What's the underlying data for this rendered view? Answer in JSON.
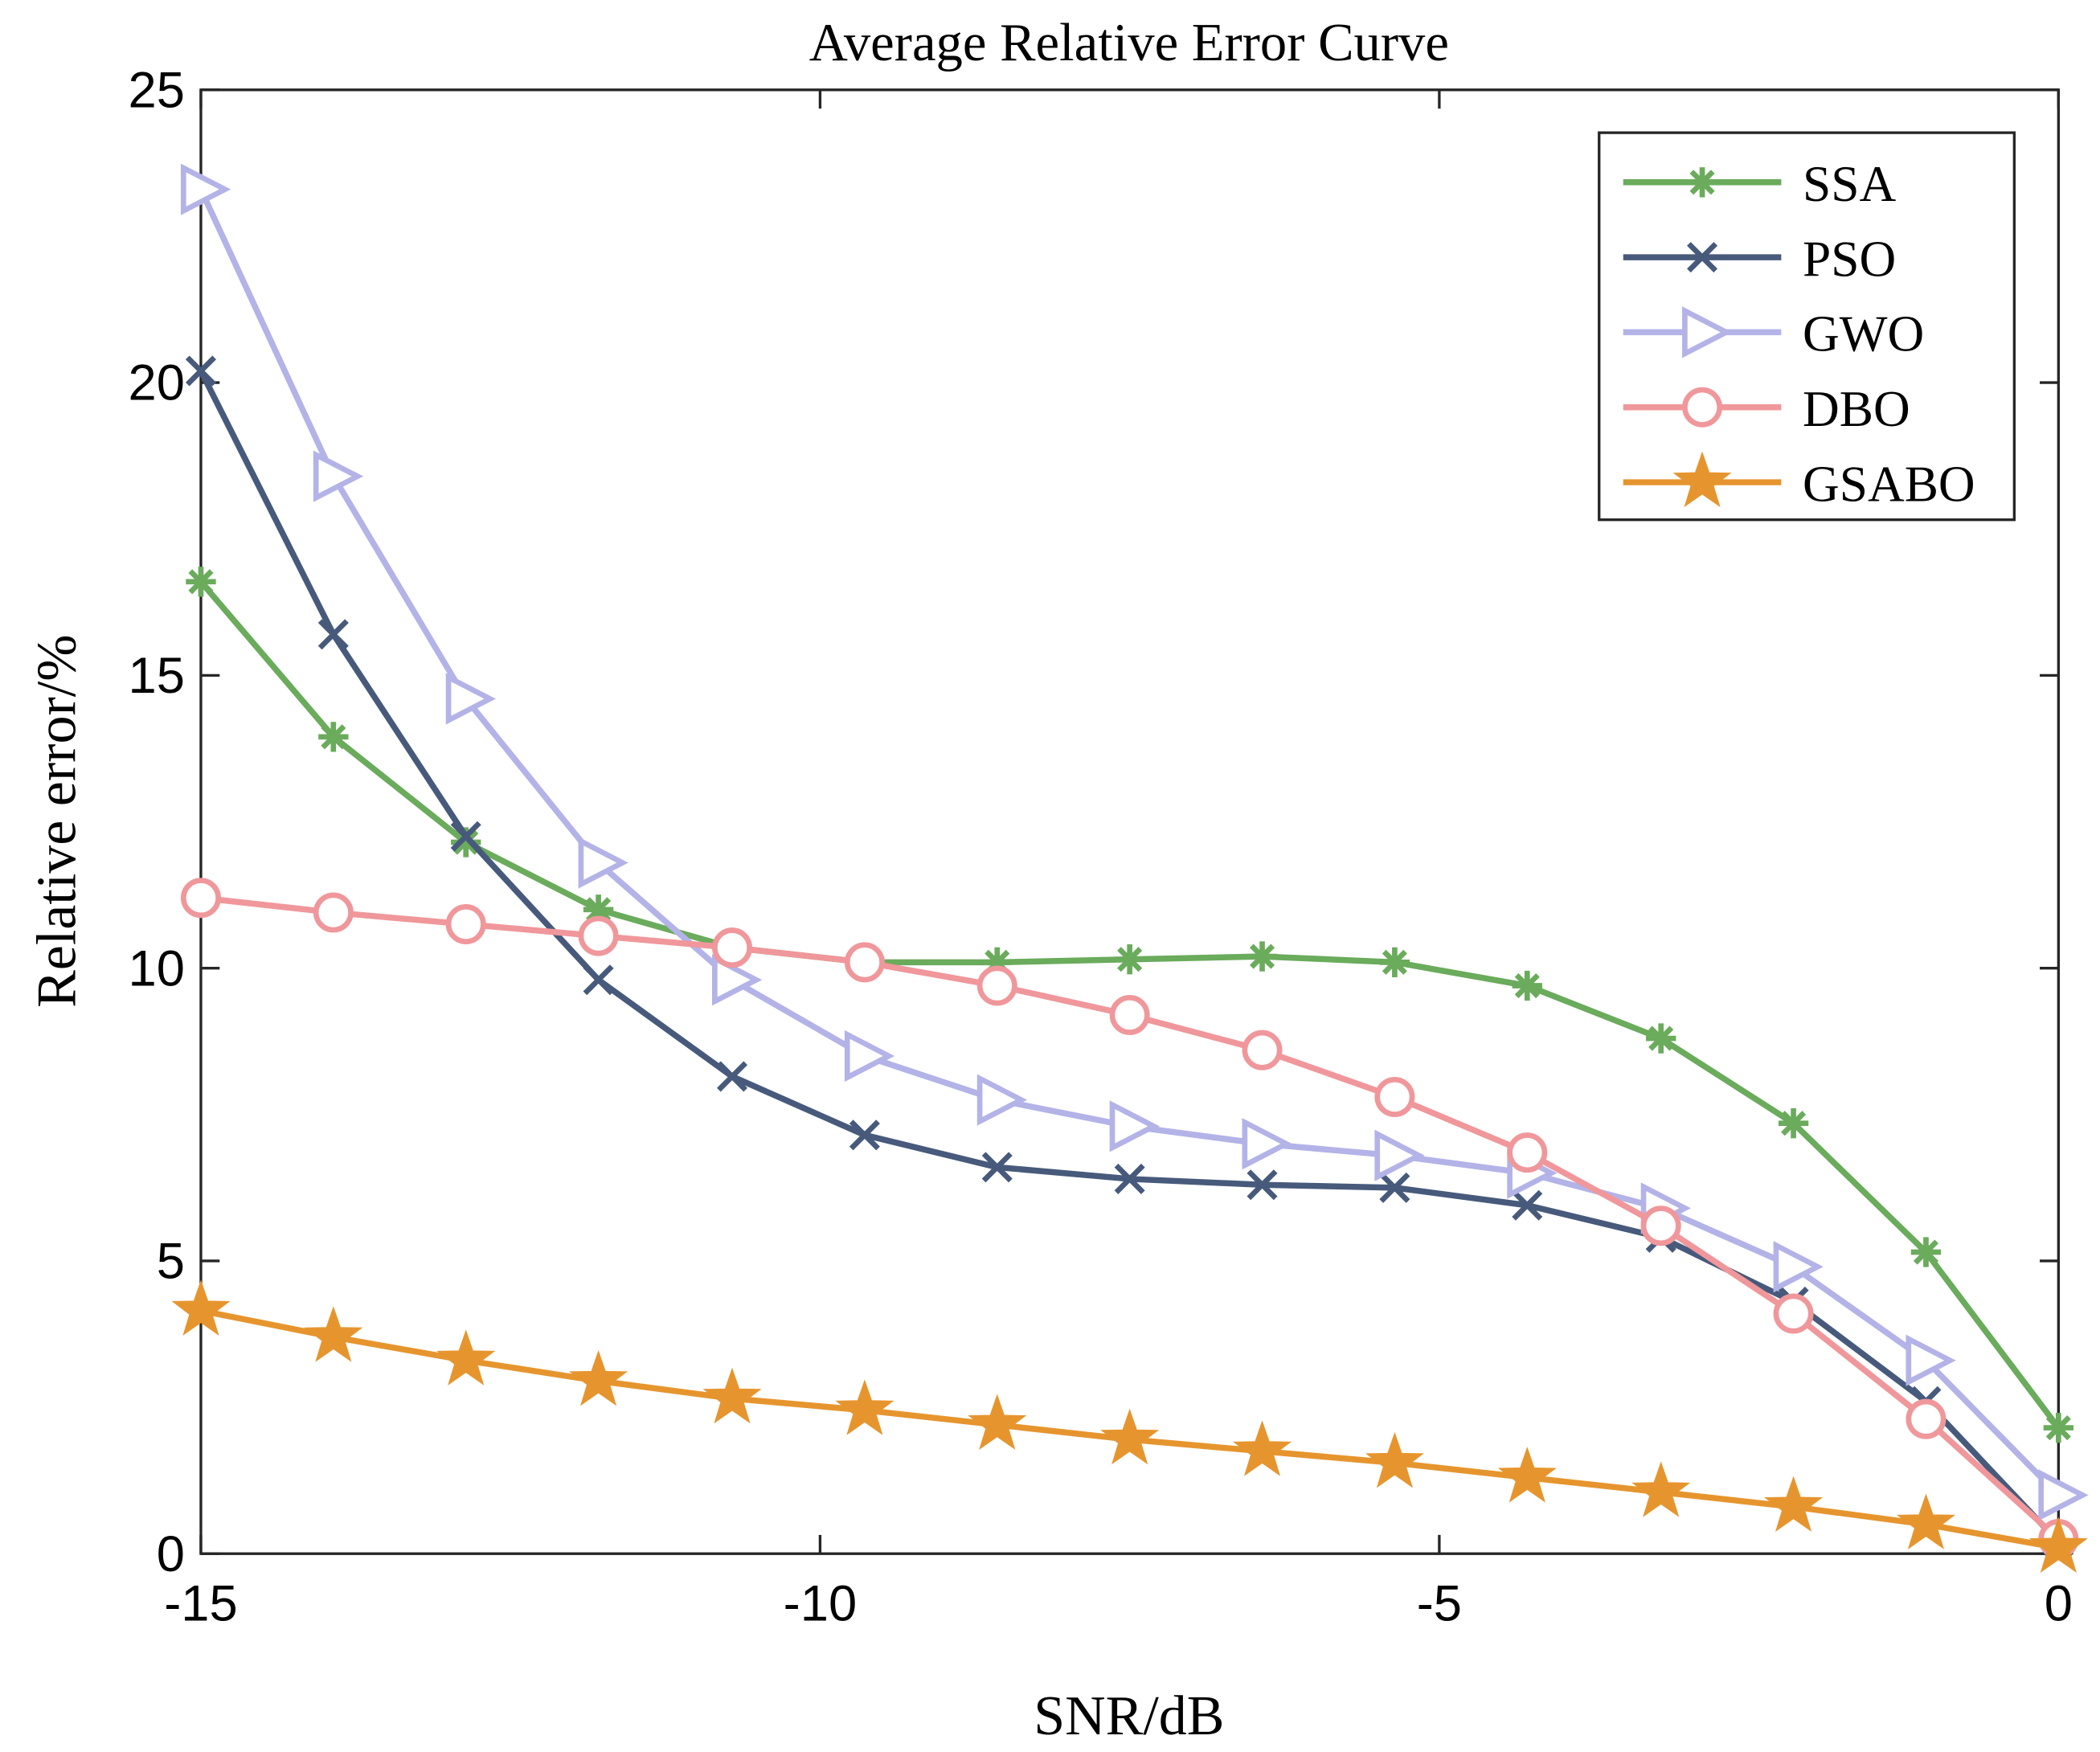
{
  "chart_data": {
    "type": "line",
    "title": "Average Relative Error Curve",
    "xlabel": "SNR/dB",
    "ylabel": "Relative error/%",
    "xlim": [
      -15,
      0
    ],
    "ylim": [
      0,
      25
    ],
    "xticks": [
      -15,
      -10,
      -5,
      0
    ],
    "yticks": [
      0,
      5,
      10,
      15,
      20,
      25
    ],
    "grid": false,
    "legend_position": "top-right",
    "x": [
      -15,
      -13.93,
      -12.86,
      -11.79,
      -10.71,
      -9.64,
      -8.57,
      -7.5,
      -6.43,
      -5.36,
      -4.29,
      -3.21,
      -2.14,
      -1.07,
      0
    ],
    "series": [
      {
        "name": "SSA",
        "color": "#6aab5c",
        "marker": "asterisk",
        "values": [
          16.6,
          13.95,
          12.15,
          11.0,
          10.35,
          10.1,
          10.1,
          10.15,
          10.2,
          10.1,
          9.7,
          8.8,
          7.35,
          5.15,
          2.15
        ]
      },
      {
        "name": "PSO",
        "color": "#475a7b",
        "marker": "x",
        "values": [
          20.2,
          15.7,
          12.25,
          9.8,
          8.15,
          7.15,
          6.6,
          6.4,
          6.3,
          6.25,
          5.95,
          5.4,
          4.3,
          2.6,
          0.2
        ]
      },
      {
        "name": "GWO",
        "color": "#b3b3e8",
        "marker": "triangle-right",
        "values": [
          23.3,
          18.4,
          14.6,
          11.8,
          9.8,
          8.5,
          7.75,
          7.3,
          7.0,
          6.8,
          6.5,
          5.9,
          4.9,
          3.3,
          1.0
        ]
      },
      {
        "name": "DBO",
        "color": "#f0979b",
        "marker": "circle",
        "values": [
          11.2,
          10.95,
          10.75,
          10.55,
          10.35,
          10.1,
          9.7,
          9.2,
          8.6,
          7.8,
          6.85,
          5.6,
          4.1,
          2.3,
          0.25
        ]
      },
      {
        "name": "GSABO",
        "color": "#e6952e",
        "marker": "star",
        "values": [
          4.15,
          3.7,
          3.3,
          2.95,
          2.65,
          2.45,
          2.2,
          1.95,
          1.75,
          1.55,
          1.3,
          1.05,
          0.8,
          0.5,
          0.1
        ]
      }
    ]
  }
}
